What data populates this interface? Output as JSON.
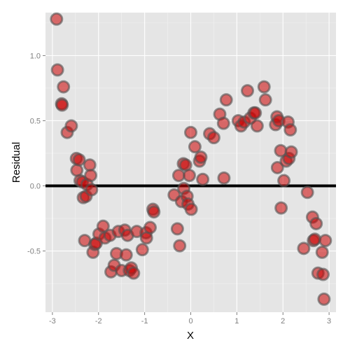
{
  "chart_data": {
    "type": "scatter",
    "title": "",
    "xlabel": "X",
    "ylabel": "Residual",
    "xlim": [
      -3.15,
      3.15
    ],
    "ylim": [
      -0.97,
      1.33
    ],
    "x_ticks": [
      -3,
      -2,
      -1,
      0,
      1,
      2,
      3
    ],
    "x_tick_labels": [
      "-3",
      "-2",
      "-1",
      "0",
      "1",
      "2",
      "3"
    ],
    "y_ticks": [
      -0.5,
      0.0,
      0.5,
      1.0
    ],
    "y_tick_labels": [
      "-0.5",
      "0.0",
      "0.5",
      "1.0"
    ],
    "reference_line": {
      "y": 0.0,
      "color": "#000000"
    },
    "grid": true,
    "panel_background": "#e5e5e5",
    "grid_color": "#ffffff",
    "point_fill": "#cc0000",
    "point_stroke": "#555555",
    "points": [
      {
        "x": -2.91,
        "y": 1.28
      },
      {
        "x": -2.89,
        "y": 0.89
      },
      {
        "x": -2.8,
        "y": 0.63
      },
      {
        "x": -2.79,
        "y": 0.62
      },
      {
        "x": -2.76,
        "y": 0.76
      },
      {
        "x": -2.68,
        "y": 0.41
      },
      {
        "x": -2.59,
        "y": 0.46
      },
      {
        "x": -2.48,
        "y": 0.21
      },
      {
        "x": -2.47,
        "y": 0.12
      },
      {
        "x": -2.42,
        "y": 0.2
      },
      {
        "x": -2.4,
        "y": 0.04
      },
      {
        "x": -2.35,
        "y": 0.03
      },
      {
        "x": -2.33,
        "y": -0.09
      },
      {
        "x": -2.3,
        "y": -0.42
      },
      {
        "x": -2.27,
        "y": -0.08
      },
      {
        "x": -2.25,
        "y": 0.01
      },
      {
        "x": -2.19,
        "y": 0.16
      },
      {
        "x": -2.17,
        "y": 0.08
      },
      {
        "x": -2.15,
        "y": -0.03
      },
      {
        "x": -2.12,
        "y": -0.51
      },
      {
        "x": -2.08,
        "y": -0.45
      },
      {
        "x": -2.05,
        "y": -0.44
      },
      {
        "x": -1.99,
        "y": -0.37
      },
      {
        "x": -1.9,
        "y": -0.31
      },
      {
        "x": -1.86,
        "y": -0.4
      },
      {
        "x": -1.75,
        "y": -0.38
      },
      {
        "x": -1.73,
        "y": -0.66
      },
      {
        "x": -1.66,
        "y": -0.61
      },
      {
        "x": -1.61,
        "y": -0.52
      },
      {
        "x": -1.57,
        "y": -0.35
      },
      {
        "x": -1.5,
        "y": -0.65
      },
      {
        "x": -1.43,
        "y": -0.34
      },
      {
        "x": -1.4,
        "y": -0.53
      },
      {
        "x": -1.37,
        "y": -0.38
      },
      {
        "x": -1.33,
        "y": -0.65
      },
      {
        "x": -1.29,
        "y": -0.63
      },
      {
        "x": -1.24,
        "y": -0.67
      },
      {
        "x": -1.17,
        "y": -0.35
      },
      {
        "x": -1.05,
        "y": -0.49
      },
      {
        "x": -0.97,
        "y": -0.36
      },
      {
        "x": -0.96,
        "y": -0.4
      },
      {
        "x": -0.88,
        "y": -0.32
      },
      {
        "x": -0.82,
        "y": -0.18
      },
      {
        "x": -0.8,
        "y": -0.2
      },
      {
        "x": -0.36,
        "y": -0.07
      },
      {
        "x": -0.29,
        "y": -0.33
      },
      {
        "x": -0.26,
        "y": 0.08
      },
      {
        "x": -0.24,
        "y": -0.46
      },
      {
        "x": -0.2,
        "y": -0.12
      },
      {
        "x": -0.16,
        "y": 0.17
      },
      {
        "x": -0.15,
        "y": -0.02
      },
      {
        "x": -0.11,
        "y": 0.16
      },
      {
        "x": -0.08,
        "y": -0.08
      },
      {
        "x": -0.06,
        "y": -0.14
      },
      {
        "x": -0.03,
        "y": 0.08
      },
      {
        "x": 0.0,
        "y": 0.41
      },
      {
        "x": 0.01,
        "y": -0.18
      },
      {
        "x": 0.09,
        "y": 0.3
      },
      {
        "x": 0.19,
        "y": 0.19
      },
      {
        "x": 0.22,
        "y": 0.22
      },
      {
        "x": 0.26,
        "y": 0.05
      },
      {
        "x": 0.41,
        "y": 0.4
      },
      {
        "x": 0.5,
        "y": 0.37
      },
      {
        "x": 0.63,
        "y": 0.55
      },
      {
        "x": 0.71,
        "y": 0.48
      },
      {
        "x": 0.72,
        "y": 0.06
      },
      {
        "x": 0.77,
        "y": 0.66
      },
      {
        "x": 1.03,
        "y": 0.5
      },
      {
        "x": 1.09,
        "y": 0.46
      },
      {
        "x": 1.16,
        "y": 0.49
      },
      {
        "x": 1.23,
        "y": 0.73
      },
      {
        "x": 1.29,
        "y": 0.52
      },
      {
        "x": 1.37,
        "y": 0.56
      },
      {
        "x": 1.4,
        "y": 0.56
      },
      {
        "x": 1.44,
        "y": 0.46
      },
      {
        "x": 1.59,
        "y": 0.76
      },
      {
        "x": 1.62,
        "y": 0.66
      },
      {
        "x": 1.84,
        "y": 0.47
      },
      {
        "x": 1.87,
        "y": 0.53
      },
      {
        "x": 1.88,
        "y": 0.14
      },
      {
        "x": 1.91,
        "y": 0.5
      },
      {
        "x": 1.95,
        "y": 0.27
      },
      {
        "x": 1.96,
        "y": -0.17
      },
      {
        "x": 2.02,
        "y": 0.04
      },
      {
        "x": 2.07,
        "y": 0.19
      },
      {
        "x": 2.11,
        "y": 0.49
      },
      {
        "x": 2.13,
        "y": 0.21
      },
      {
        "x": 2.16,
        "y": 0.43
      },
      {
        "x": 2.18,
        "y": 0.26
      },
      {
        "x": 2.45,
        "y": -0.48
      },
      {
        "x": 2.53,
        "y": -0.05
      },
      {
        "x": 2.64,
        "y": -0.24
      },
      {
        "x": 2.66,
        "y": -0.42
      },
      {
        "x": 2.69,
        "y": -0.41
      },
      {
        "x": 2.72,
        "y": -0.29
      },
      {
        "x": 2.76,
        "y": -0.67
      },
      {
        "x": 2.85,
        "y": -0.51
      },
      {
        "x": 2.87,
        "y": -0.68
      },
      {
        "x": 2.89,
        "y": -0.87
      },
      {
        "x": 2.92,
        "y": -0.42
      }
    ]
  }
}
